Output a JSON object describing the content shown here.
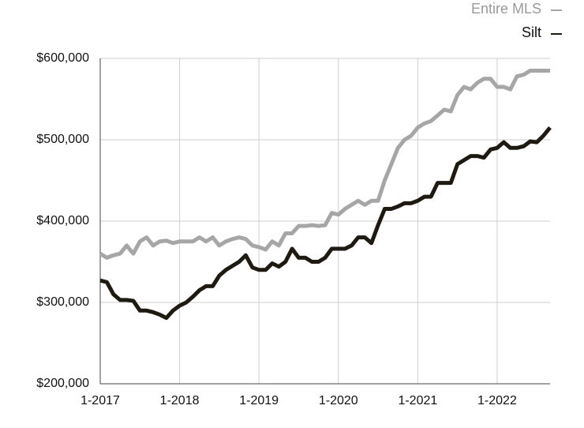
{
  "chart_data": {
    "type": "line",
    "categories": [
      "1-2017",
      null,
      null,
      null,
      null,
      null,
      null,
      null,
      null,
      null,
      null,
      null,
      "1-2018",
      null,
      null,
      null,
      null,
      null,
      null,
      null,
      null,
      null,
      null,
      null,
      "1-2019",
      null,
      null,
      null,
      null,
      null,
      null,
      null,
      null,
      null,
      null,
      null,
      "1-2020",
      null,
      null,
      null,
      null,
      null,
      null,
      null,
      null,
      null,
      null,
      null,
      "1-2021",
      null,
      null,
      null,
      null,
      null,
      null,
      null,
      null,
      null,
      null,
      null,
      "1-2022",
      null,
      null,
      null,
      null,
      null,
      null,
      null,
      null
    ],
    "series": [
      {
        "name": "Entire MLS",
        "color": "#a6a6a6",
        "values": [
          360000,
          355000,
          358000,
          360000,
          370000,
          360000,
          375000,
          380000,
          370000,
          375000,
          376000,
          373000,
          375000,
          375000,
          375000,
          380000,
          375000,
          380000,
          370000,
          375000,
          378000,
          380000,
          378000,
          370000,
          368000,
          365000,
          375000,
          370000,
          385000,
          385000,
          394000,
          394000,
          395000,
          394000,
          395000,
          410000,
          408000,
          415000,
          420000,
          425000,
          420000,
          425000,
          425000,
          450000,
          470000,
          490000,
          500000,
          505000,
          515000,
          520000,
          523000,
          530000,
          537000,
          535000,
          555000,
          565000,
          562000,
          570000,
          575000,
          575000,
          565000,
          565000,
          562000,
          578000,
          580000,
          585000,
          585000,
          585000,
          585000
        ]
      },
      {
        "name": "Silt",
        "color": "#1e1a12",
        "values": [
          327000,
          325000,
          310000,
          303000,
          303000,
          302000,
          290000,
          290000,
          288000,
          285000,
          281000,
          290000,
          296000,
          300000,
          307000,
          315000,
          320000,
          320000,
          333000,
          340000,
          345000,
          350000,
          358000,
          343000,
          340000,
          340000,
          348000,
          344000,
          350000,
          366000,
          355000,
          355000,
          350000,
          350000,
          355000,
          366000,
          366000,
          366000,
          370000,
          380000,
          380000,
          373000,
          395000,
          415000,
          415000,
          418000,
          422000,
          422000,
          425000,
          430000,
          430000,
          447000,
          447000,
          447000,
          470000,
          475000,
          480000,
          480000,
          478000,
          488000,
          490000,
          497000,
          490000,
          490000,
          492000,
          498000,
          497000,
          505000,
          515000
        ]
      }
    ],
    "ylim": [
      200000,
      600000
    ],
    "yticks": [
      {
        "value": 200000,
        "label": "$200,000"
      },
      {
        "value": 300000,
        "label": "$300,000"
      },
      {
        "value": 400000,
        "label": "$400,000"
      },
      {
        "value": 500000,
        "label": "$500,000"
      },
      {
        "value": 600000,
        "label": "$600,000"
      }
    ],
    "grid": true,
    "legend": "top-right"
  }
}
